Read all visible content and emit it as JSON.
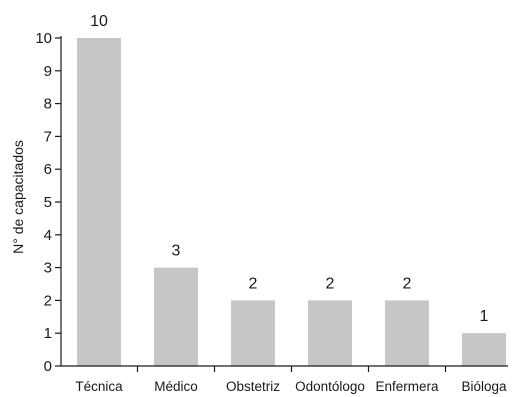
{
  "chart_data": {
    "type": "bar",
    "categories": [
      "Técnica",
      "Médico",
      "Obstetriz",
      "Odontólogo",
      "Enfermera",
      "Bióloga"
    ],
    "values": [
      10,
      3,
      2,
      2,
      2,
      1
    ],
    "data_labels": [
      "10",
      "3",
      "2",
      "2",
      "2",
      "1"
    ],
    "ylabel": "N° de capacitados",
    "xlabel": "",
    "ylim": [
      0,
      10
    ],
    "yticks": [
      "0",
      "1",
      "2",
      "3",
      "4",
      "5",
      "6",
      "7",
      "8",
      "9",
      "10"
    ],
    "grid": false,
    "legend": "none",
    "colors": {
      "bar": "#c6c6c6",
      "axis": "#1a1a1a"
    }
  }
}
